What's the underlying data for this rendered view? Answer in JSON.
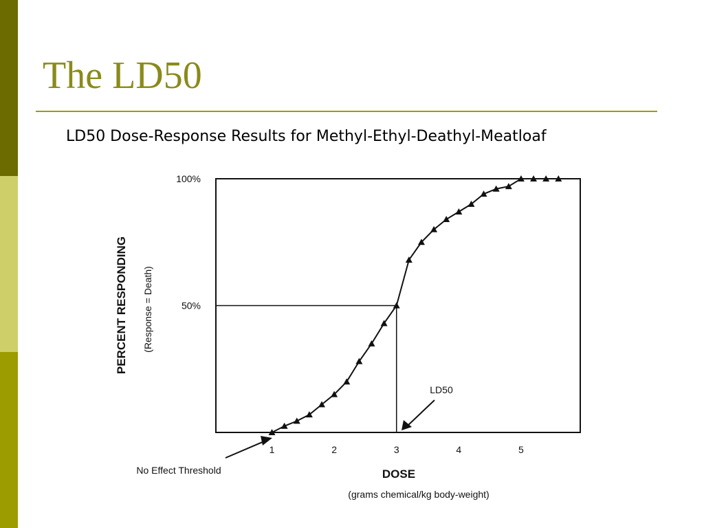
{
  "slide": {
    "title": "The LD50",
    "caption": "LD50 Dose-Response Results for Methyl-Ethyl-Deathyl-Meatloaf"
  },
  "colors": {
    "sidebar_top": "#6b6b00",
    "sidebar_middle": "#cfcf6a",
    "sidebar_bottom": "#9c9c00",
    "title": "#8a8a1a",
    "rule": "#9c9c00"
  },
  "chart_data": {
    "type": "line",
    "marker": "triangle",
    "xlabel": "DOSE",
    "xlabel_sub": "(grams chemical/kg body-weight)",
    "ylabel": "PERCENT RESPONDING",
    "ylabel_sub": "(Response = Death)",
    "xlim": [
      0.1,
      5.95
    ],
    "ylim": [
      0,
      100
    ],
    "x_ticks": [
      "1",
      "2",
      "3",
      "4",
      "5"
    ],
    "y_ticks": [
      {
        "value": 50,
        "label": "50%"
      },
      {
        "value": 100,
        "label": "100%"
      }
    ],
    "grid": false,
    "points": [
      {
        "x": 1.0,
        "y": 0
      },
      {
        "x": 1.2,
        "y": 2.5
      },
      {
        "x": 1.4,
        "y": 4.5
      },
      {
        "x": 1.6,
        "y": 7
      },
      {
        "x": 1.8,
        "y": 11
      },
      {
        "x": 2.0,
        "y": 15
      },
      {
        "x": 2.2,
        "y": 20
      },
      {
        "x": 2.4,
        "y": 28
      },
      {
        "x": 2.6,
        "y": 35
      },
      {
        "x": 2.8,
        "y": 43
      },
      {
        "x": 3.0,
        "y": 50
      },
      {
        "x": 3.2,
        "y": 68
      },
      {
        "x": 3.4,
        "y": 75
      },
      {
        "x": 3.6,
        "y": 80
      },
      {
        "x": 3.8,
        "y": 84
      },
      {
        "x": 4.0,
        "y": 87
      },
      {
        "x": 4.2,
        "y": 90
      },
      {
        "x": 4.4,
        "y": 94
      },
      {
        "x": 4.6,
        "y": 96
      },
      {
        "x": 4.8,
        "y": 97
      },
      {
        "x": 5.0,
        "y": 100
      },
      {
        "x": 5.2,
        "y": 100
      },
      {
        "x": 5.4,
        "y": 100
      },
      {
        "x": 5.6,
        "y": 100
      }
    ],
    "reference": {
      "x": 3,
      "y": 50
    },
    "annotations": [
      {
        "label": "LD50",
        "x": 3,
        "y": 0
      },
      {
        "label": "No Effect Threshold",
        "x": 1,
        "y": 0
      }
    ]
  }
}
